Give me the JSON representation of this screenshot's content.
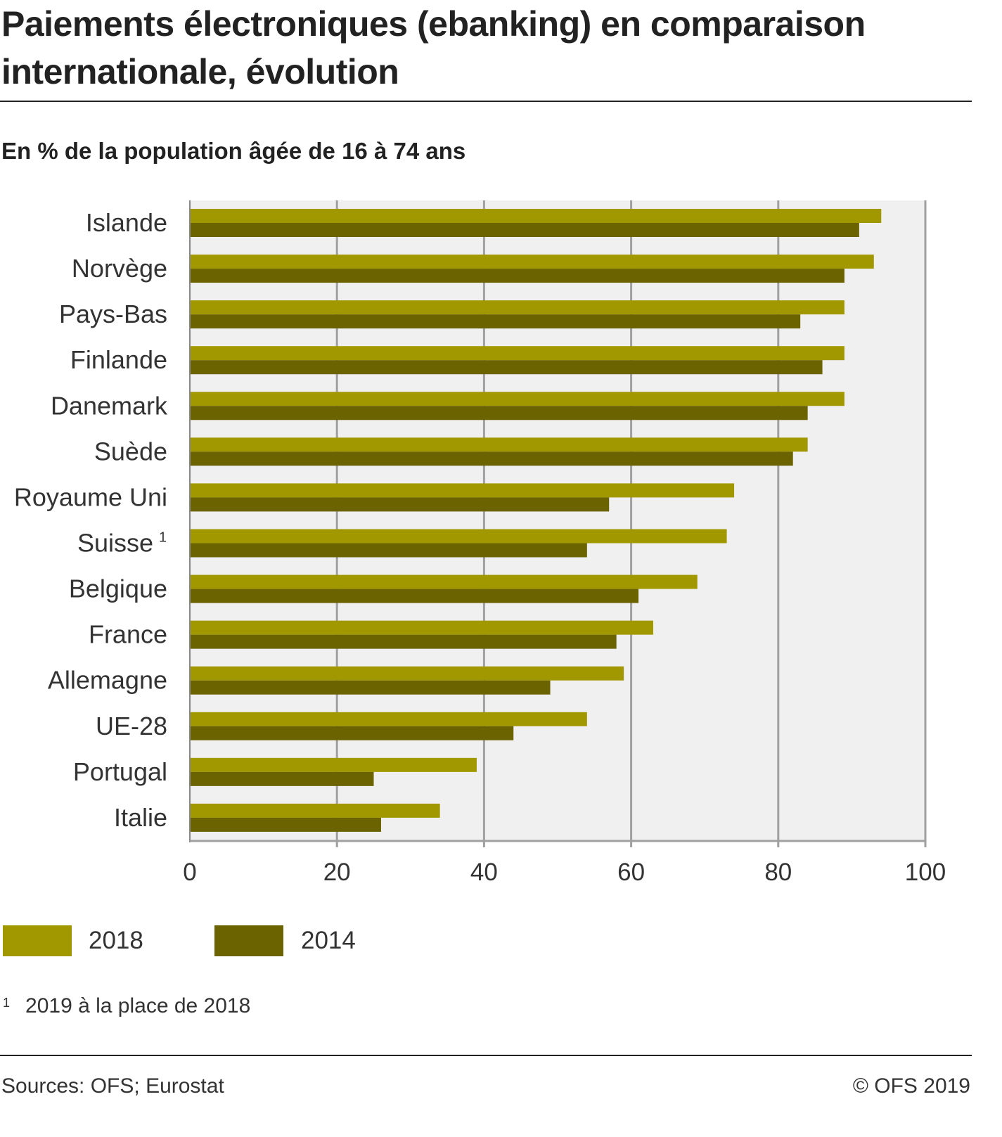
{
  "header": {
    "title": "Paiements électroniques (ebanking) en comparaison internationale, évolution",
    "subtitle": "En % de la population âgée de 16 à 74 ans"
  },
  "colors": {
    "series_2018": "#a19800",
    "series_2014": "#6b6300",
    "plot_bg": "#f0f0f0",
    "grid": "#a0a0a0",
    "text": "#333333"
  },
  "chart_data": {
    "type": "bar",
    "orientation": "horizontal",
    "categories": [
      "Islande",
      "Norvège",
      "Pays-Bas",
      "Finlande",
      "Danemark",
      "Suède",
      "Royaume Uni",
      "Suisse",
      "Belgique",
      "France",
      "Allemagne",
      "UE-28",
      "Portugal",
      "Italie"
    ],
    "category_footnotes": {
      "Suisse": "1"
    },
    "series": [
      {
        "name": "2018",
        "values": [
          94,
          93,
          89,
          89,
          89,
          84,
          74,
          73,
          69,
          63,
          59,
          54,
          39,
          34
        ]
      },
      {
        "name": "2014",
        "values": [
          91,
          89,
          83,
          86,
          84,
          82,
          57,
          54,
          61,
          58,
          49,
          44,
          25,
          26
        ]
      }
    ],
    "xlim": [
      0,
      100
    ],
    "xticks": [
      "0",
      "20",
      "40",
      "60",
      "80",
      "100"
    ],
    "grid": true,
    "legend_position": "bottom-left"
  },
  "legend": {
    "items": [
      {
        "label": "2018"
      },
      {
        "label": "2014"
      }
    ]
  },
  "footnote": {
    "marker": "1",
    "text": "2019 à la place de 2018"
  },
  "footer": {
    "source": "Sources: OFS; Eurostat",
    "copyright": "© OFS 2019"
  }
}
